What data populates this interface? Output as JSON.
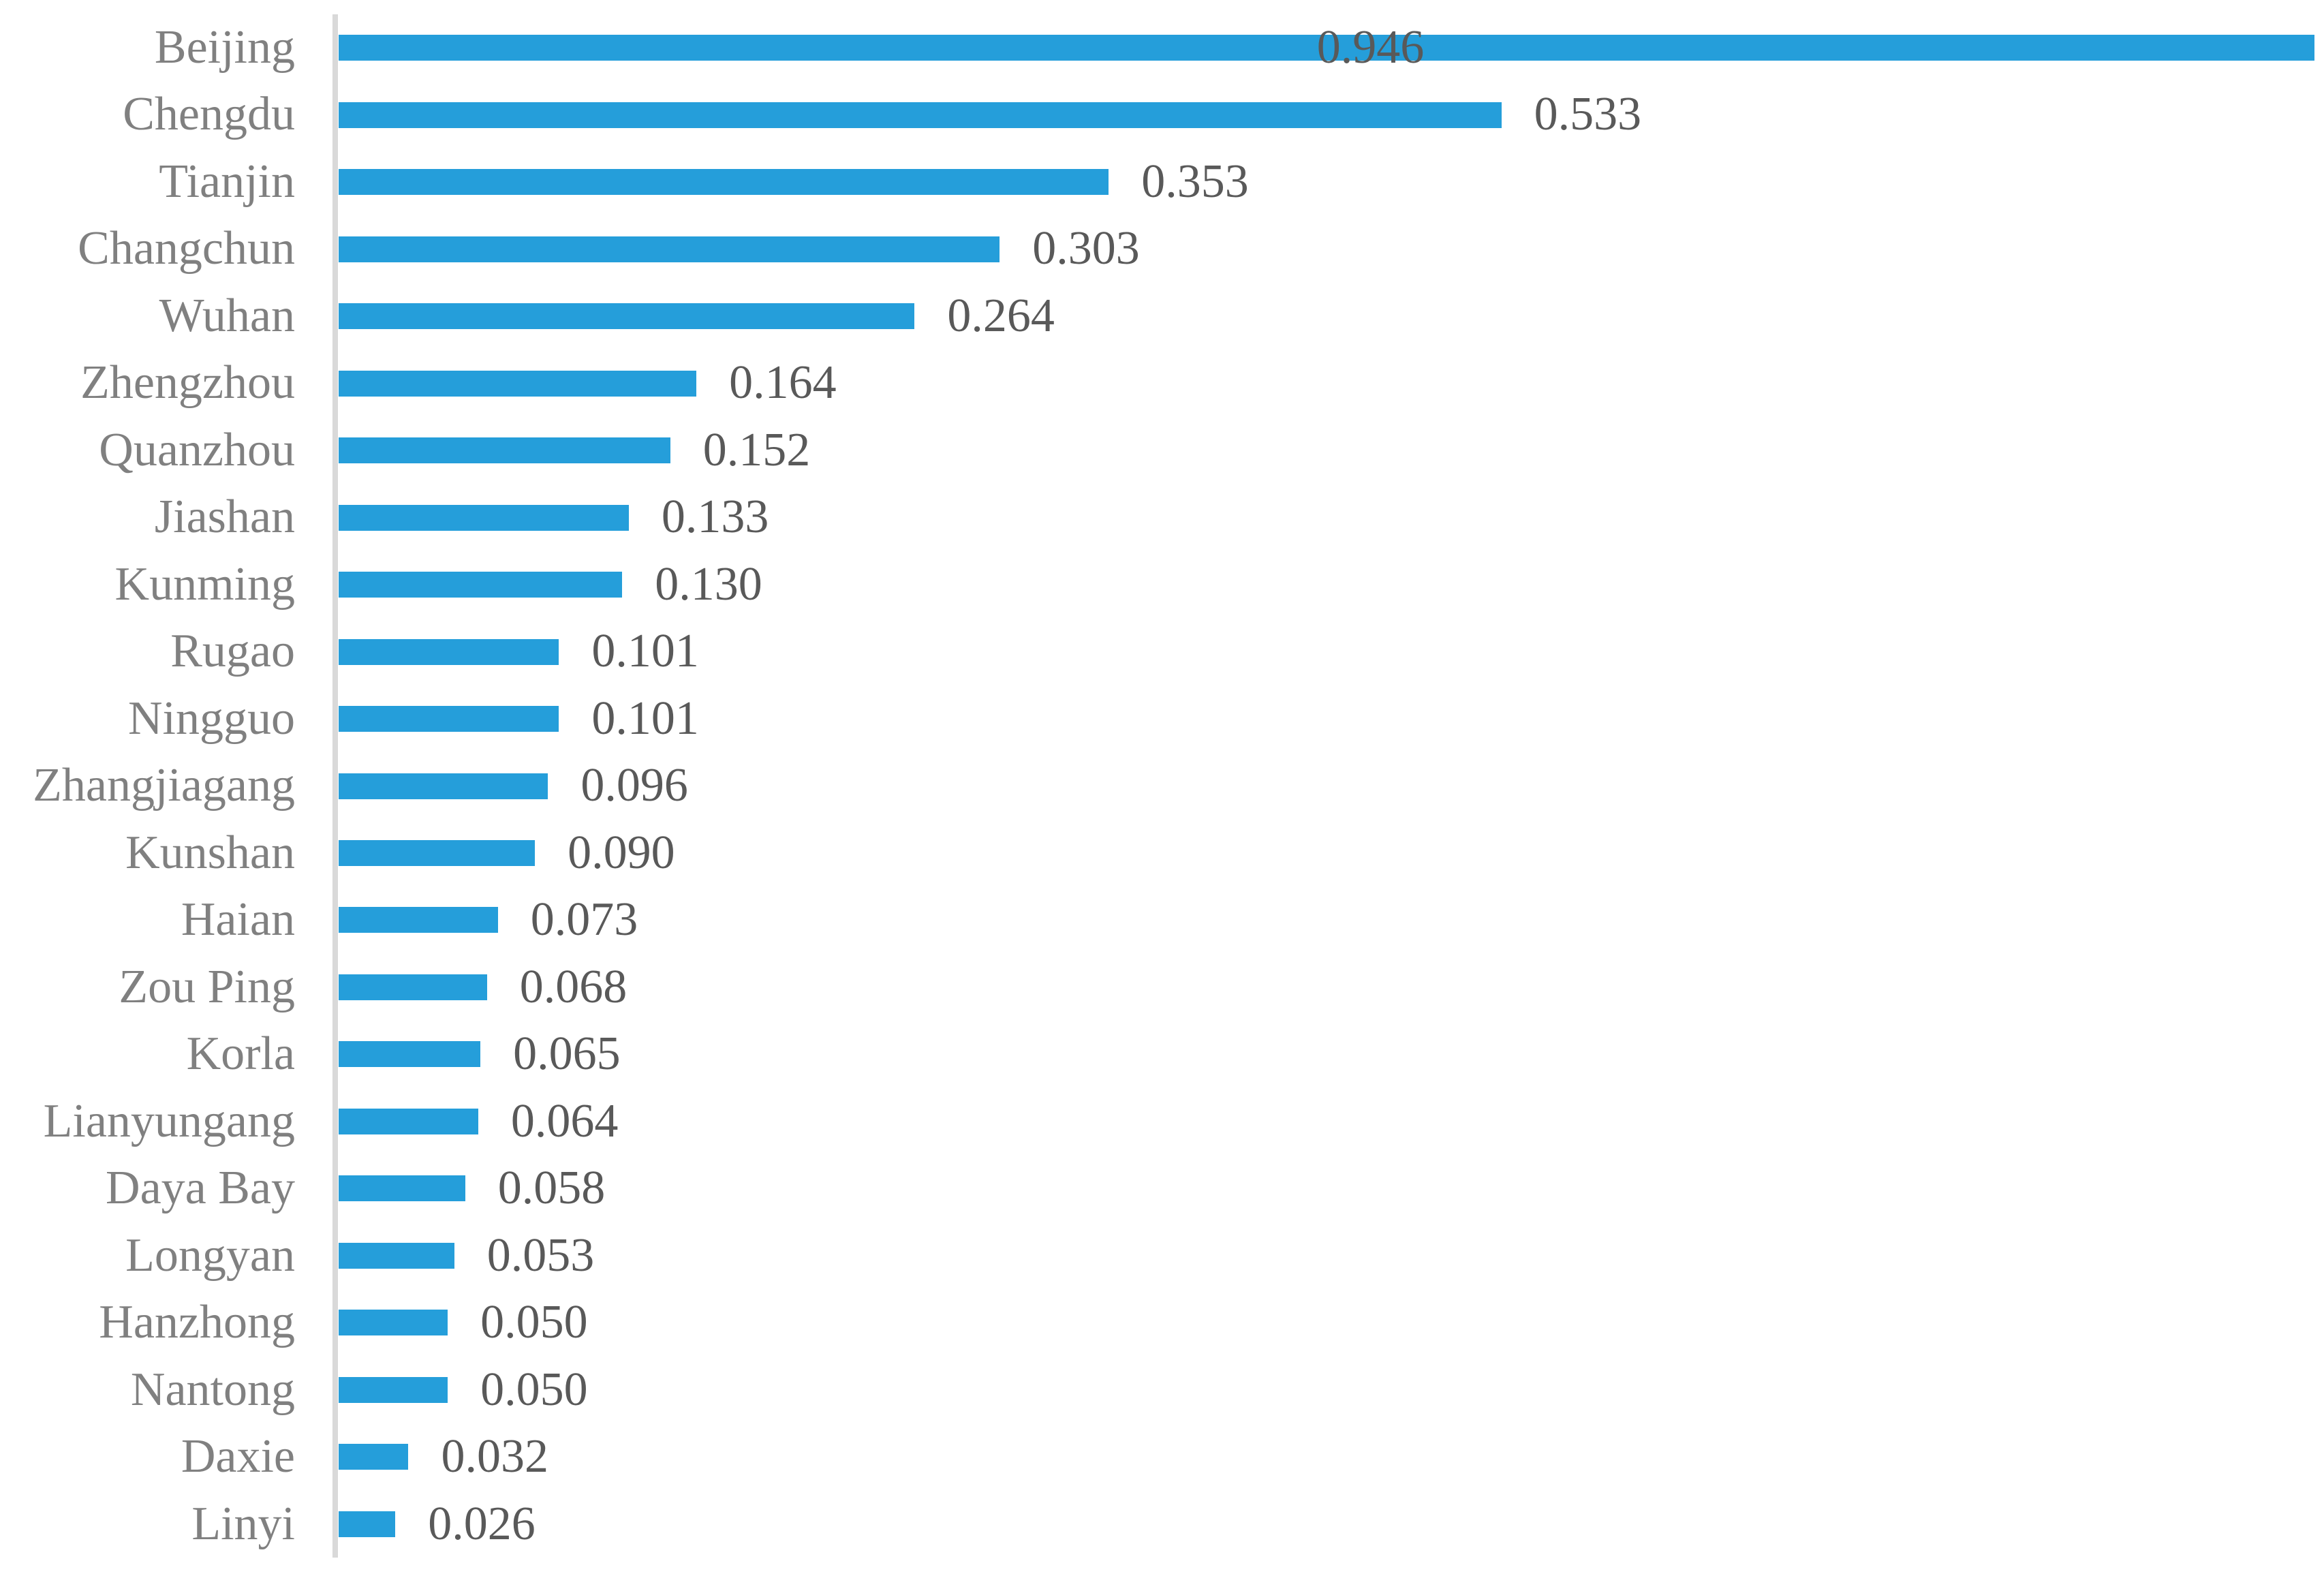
{
  "chart_data": {
    "type": "bar",
    "orientation": "horizontal",
    "title": "",
    "xlabel": "",
    "ylabel": "",
    "grid": false,
    "legend": false,
    "categories": [
      "Beijing",
      "Chengdu",
      "Tianjin",
      "Changchun",
      "Wuhan",
      "Zhengzhou",
      "Quanzhou",
      "Jiashan",
      "Kunming",
      "Rugao",
      "Ningguo",
      "Zhangjiagang",
      "Kunshan",
      "Haian",
      "Zou Ping",
      "Korla",
      "Lianyungang",
      "Daya Bay",
      "Longyan",
      "Hanzhong",
      "Nantong",
      "Daxie",
      "Linyi"
    ],
    "values": [
      0.946,
      0.533,
      0.353,
      0.303,
      0.264,
      0.164,
      0.152,
      0.133,
      0.13,
      0.101,
      0.101,
      0.096,
      0.09,
      0.073,
      0.068,
      0.065,
      0.064,
      0.058,
      0.053,
      0.05,
      0.05,
      0.032,
      0.026
    ],
    "value_labels": [
      "0.946",
      "0.533",
      "0.353",
      "0.303",
      "0.264",
      "0.164",
      "0.152",
      "0.133",
      "0.130",
      "0.101",
      "0.101",
      "0.096",
      "0.090",
      "0.073",
      "0.068",
      "0.065",
      "0.064",
      "0.058",
      "0.053",
      "0.050",
      "0.050",
      "0.032",
      "0.026"
    ],
    "xlim": [
      0,
      0.906
    ],
    "first_bar_clipped_at_plot_edge": true,
    "bar_color": "#259EDA",
    "category_label_color": "#808080",
    "value_label_color": "#595959",
    "axis_line_color": "#D9D9D9"
  }
}
